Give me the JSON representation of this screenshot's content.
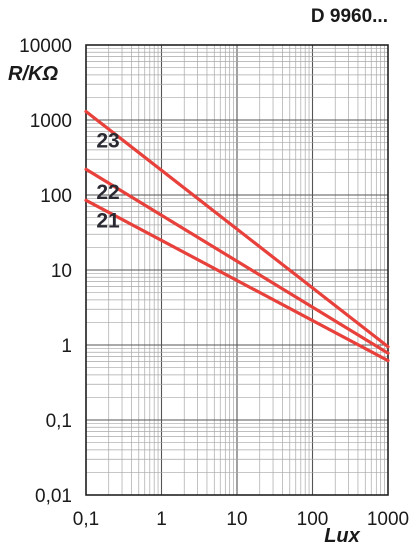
{
  "chart_data": {
    "type": "line",
    "title": "D 9960...",
    "xlabel": "Lux",
    "ylabel": "R/KΩ",
    "x_scale": "log",
    "y_scale": "log",
    "xlim": [
      0.1,
      1000
    ],
    "ylim": [
      0.01,
      10000
    ],
    "grid": true,
    "x_ticks": [
      "0,1",
      "1",
      "10",
      "100",
      "1000"
    ],
    "y_ticks": [
      "0,01",
      "0,1",
      "1",
      "10",
      "100",
      "1000",
      "10000"
    ],
    "line_color": "#e8403a",
    "series": [
      {
        "name": "23",
        "x": [
          0.1,
          1000
        ],
        "y": [
          1300,
          0.95
        ]
      },
      {
        "name": "22",
        "x": [
          0.1,
          1000
        ],
        "y": [
          220,
          0.78
        ]
      },
      {
        "name": "21",
        "x": [
          0.1,
          1000
        ],
        "y": [
          85,
          0.62
        ]
      }
    ]
  }
}
